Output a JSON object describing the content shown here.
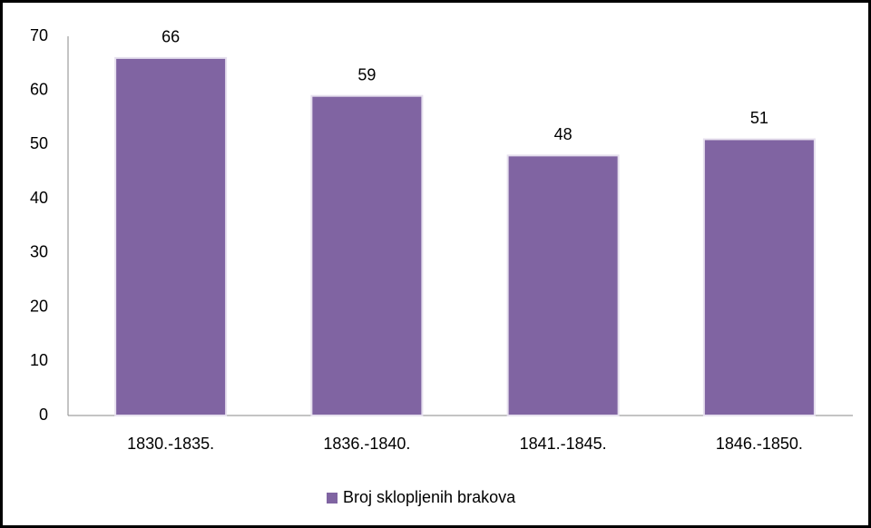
{
  "chart_data": {
    "type": "bar",
    "categories": [
      "1830.-1835.",
      "1836.-1840.",
      "1841.-1845.",
      "1846.-1850."
    ],
    "series": [
      {
        "name": "Broj sklopljenih brakova",
        "color": "#8064a2",
        "values": [
          66,
          59,
          48,
          51
        ]
      }
    ],
    "ylim": [
      0,
      70
    ],
    "yticks": [
      0,
      10,
      20,
      30,
      40,
      50,
      60,
      70
    ],
    "grid": false,
    "legend": "bottom"
  }
}
